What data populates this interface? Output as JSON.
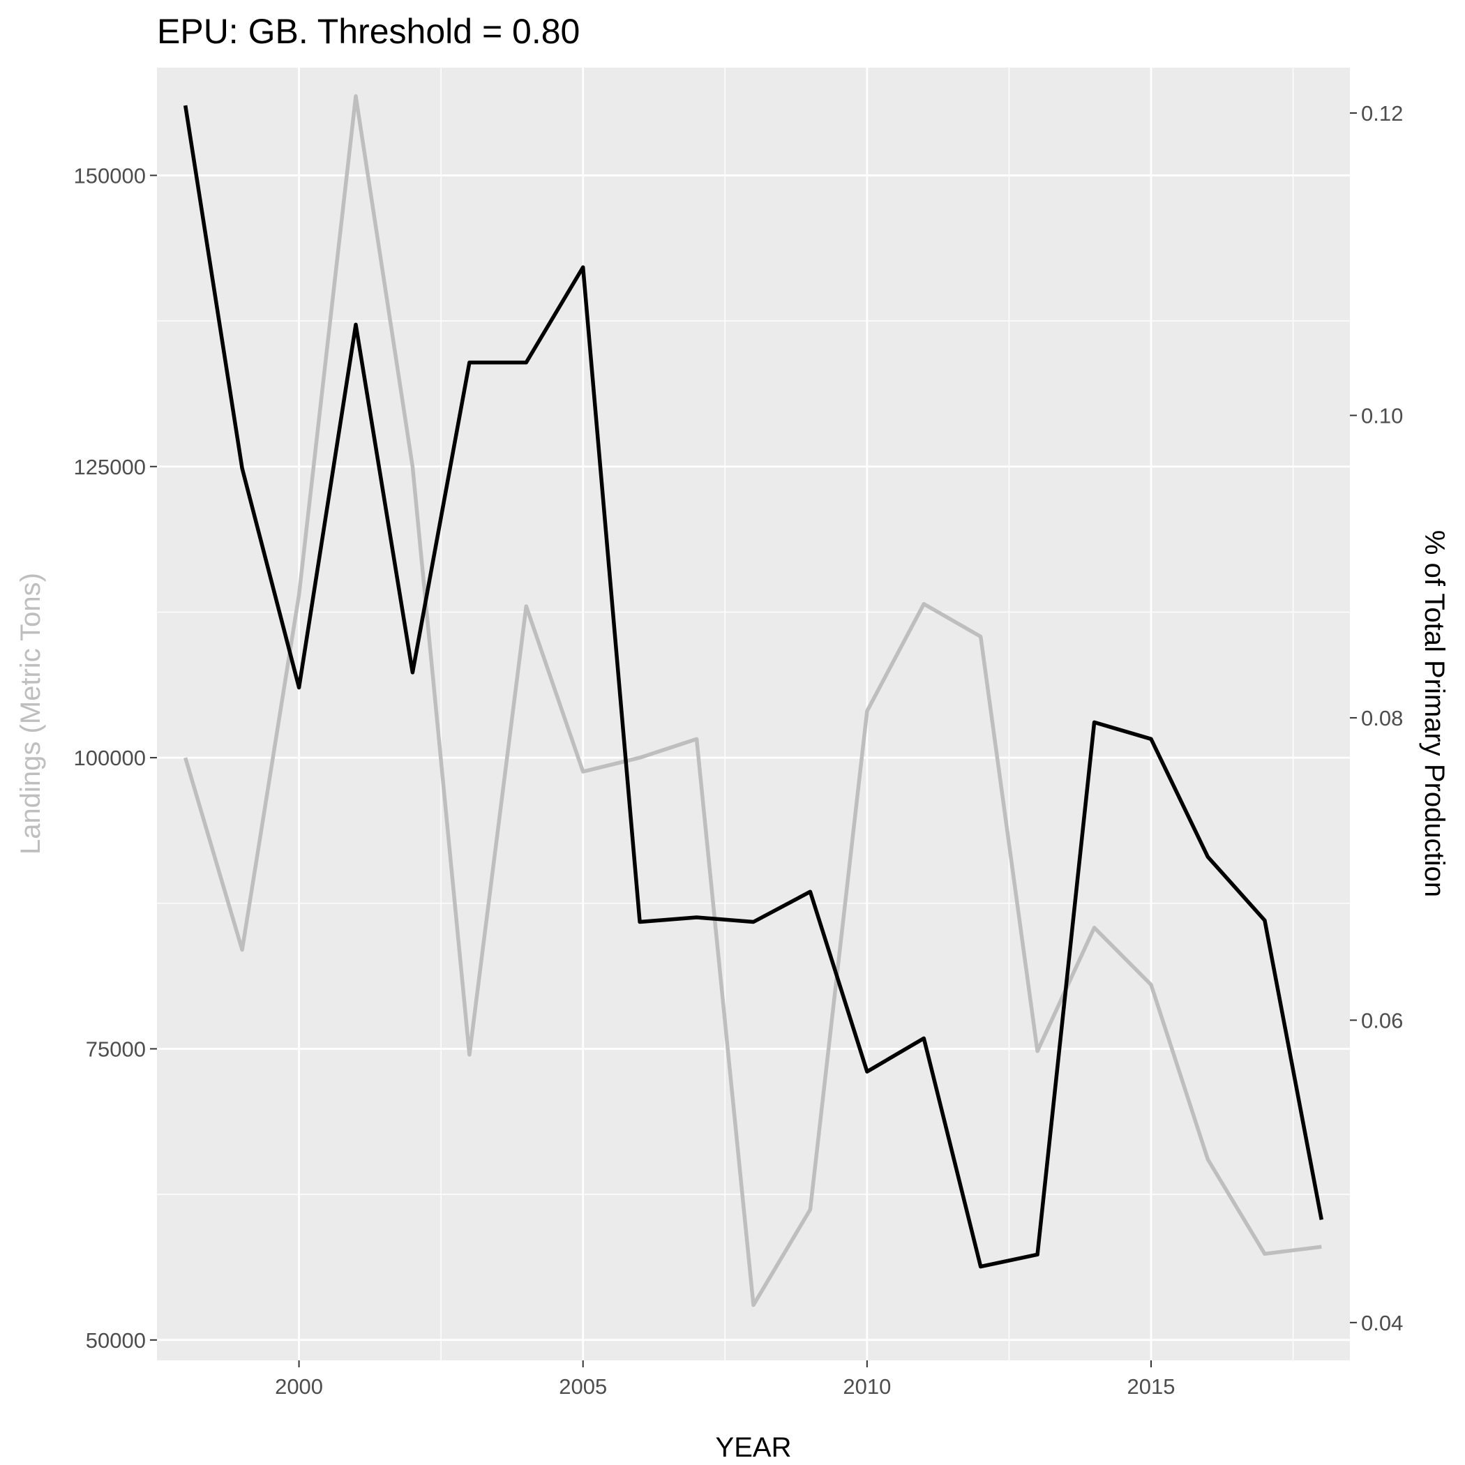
{
  "chart_data": {
    "type": "line",
    "title": "EPU: GB. Threshold = 0.80",
    "xlabel": "YEAR",
    "ylabel": "Landings (Metric Tons)",
    "ylabel_right": "% of Total Primary Production",
    "xlim": [
      1997.5,
      2018.5
    ],
    "ylim": [
      48250,
      159250
    ],
    "ylim_right": [
      0.0375,
      0.123
    ],
    "x_ticks": [
      2000,
      2005,
      2010,
      2015
    ],
    "y_ticks": [
      50000,
      75000,
      100000,
      125000,
      150000
    ],
    "y_ticks_right": [
      0.04,
      0.06,
      0.08,
      0.1,
      0.12
    ],
    "grid": true,
    "legend": "none",
    "colors": {
      "panel": "#ebebeb",
      "grid": "#ffffff",
      "landings": "#bebebe",
      "ppr": "#000000",
      "left_axis_title": "#bebebe"
    },
    "x": [
      1998,
      1999,
      2000,
      2001,
      2002,
      2003,
      2004,
      2005,
      2006,
      2007,
      2008,
      2009,
      2010,
      2011,
      2012,
      2013,
      2014,
      2015,
      2016,
      2017,
      2018
    ],
    "series": [
      {
        "axis": "left",
        "color": "#bebebe",
        "values": [
          100000,
          83500,
          114000,
          156800,
          125000,
          74500,
          113000,
          98800,
          100000,
          101600,
          53000,
          61200,
          104000,
          113200,
          110400,
          74800,
          85400,
          80500,
          65500,
          57400,
          58000
        ]
      },
      {
        "axis": "right",
        "color": "#000000",
        "values": [
          0.1205,
          0.0965,
          0.082,
          0.106,
          0.083,
          0.1035,
          0.1035,
          0.1098,
          0.0665,
          0.0668,
          0.0665,
          0.0685,
          0.0566,
          0.0588,
          0.0437,
          0.0445,
          0.0797,
          0.0786,
          0.0708,
          0.0666,
          0.0468
        ]
      }
    ]
  }
}
